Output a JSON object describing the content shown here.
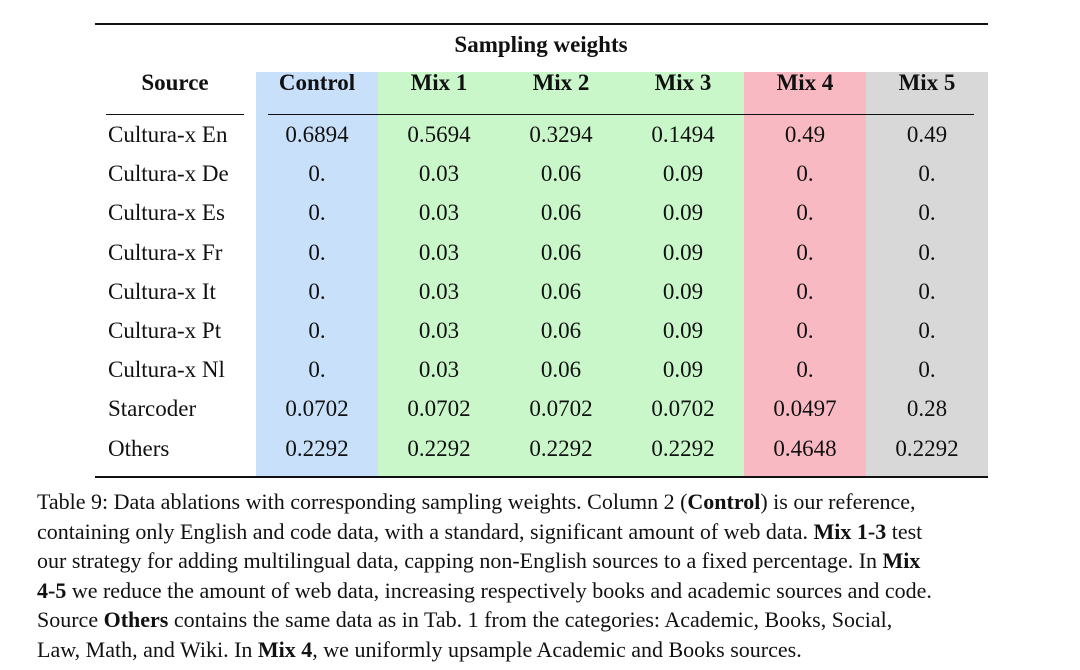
{
  "colors": {
    "control": "#c9e0fb",
    "mix_1_3": "#caf7ca",
    "mix_4": "#f9b9c2",
    "mix_5": "#d8d8d8"
  },
  "table": {
    "group_title": "Sampling weights",
    "source_header": "Source",
    "columns": [
      "Control",
      "Mix 1",
      "Mix 2",
      "Mix 3",
      "Mix 4",
      "Mix 5"
    ],
    "rows": [
      {
        "source": "Cultura-x En",
        "values": [
          "0.6894",
          "0.5694",
          "0.3294",
          "0.1494",
          "0.49",
          "0.49"
        ]
      },
      {
        "source": "Cultura-x De",
        "values": [
          "0.",
          "0.03",
          "0.06",
          "0.09",
          "0.",
          "0."
        ]
      },
      {
        "source": "Cultura-x Es",
        "values": [
          "0.",
          "0.03",
          "0.06",
          "0.09",
          "0.",
          "0."
        ]
      },
      {
        "source": "Cultura-x Fr",
        "values": [
          "0.",
          "0.03",
          "0.06",
          "0.09",
          "0.",
          "0."
        ]
      },
      {
        "source": "Cultura-x It",
        "values": [
          "0.",
          "0.03",
          "0.06",
          "0.09",
          "0.",
          "0."
        ]
      },
      {
        "source": "Cultura-x Pt",
        "values": [
          "0.",
          "0.03",
          "0.06",
          "0.09",
          "0.",
          "0."
        ]
      },
      {
        "source": "Cultura-x Nl",
        "values": [
          "0.",
          "0.03",
          "0.06",
          "0.09",
          "0.",
          "0."
        ]
      },
      {
        "source": "Starcoder",
        "values": [
          "0.0702",
          "0.0702",
          "0.0702",
          "0.0702",
          "0.0497",
          "0.28"
        ]
      },
      {
        "source": "Others",
        "values": [
          "0.2292",
          "0.2292",
          "0.2292",
          "0.2292",
          "0.4648",
          "0.2292"
        ]
      }
    ]
  },
  "caption": {
    "lines": [
      [
        {
          "t": "Table 9: Data ablations with corresponding sampling weights. Column 2 (",
          "b": false
        },
        {
          "t": "Control",
          "b": true
        },
        {
          "t": ") is our reference,",
          "b": false
        }
      ],
      [
        {
          "t": "containing only English and code data, with a standard, significant amount of web data. ",
          "b": false
        },
        {
          "t": "Mix 1-3",
          "b": true
        },
        {
          "t": " test",
          "b": false
        }
      ],
      [
        {
          "t": "our strategy for adding multilingual data, capping non-English sources to a fixed percentage. In ",
          "b": false
        },
        {
          "t": "Mix",
          "b": true
        }
      ],
      [
        {
          "t": "4-5",
          "b": true
        },
        {
          "t": " we reduce the amount of web data, increasing respectively books and academic sources and code.",
          "b": false
        }
      ],
      [
        {
          "t": "Source ",
          "b": false
        },
        {
          "t": "Others",
          "b": true
        },
        {
          "t": " contains the same data as in Tab. 1 from the categories: Academic, Books, Social,",
          "b": false
        }
      ],
      [
        {
          "t": "Law, Math, and Wiki. In ",
          "b": false
        },
        {
          "t": "Mix 4",
          "b": true
        },
        {
          "t": ", we uniformly upsample Academic and Books sources.",
          "b": false
        }
      ]
    ]
  }
}
